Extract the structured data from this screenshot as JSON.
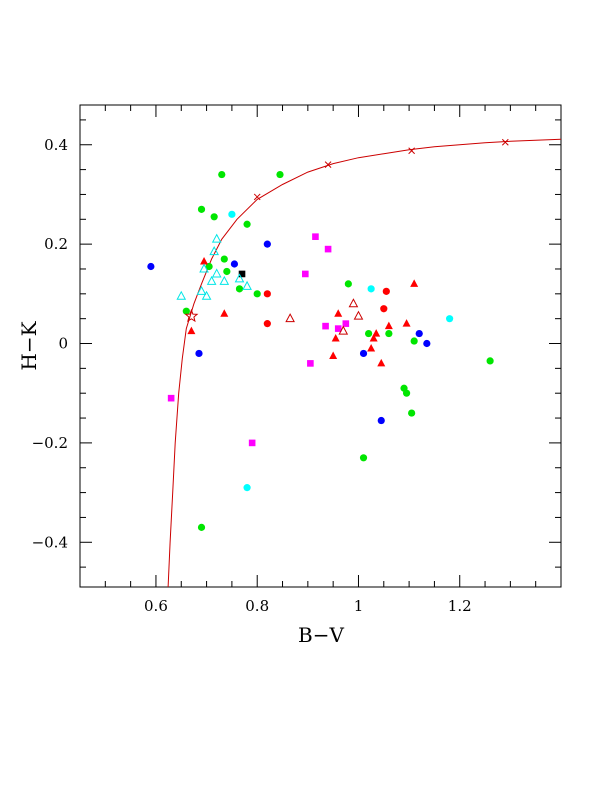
{
  "chart_data": {
    "type": "scatter",
    "xlabel": "B−V",
    "ylabel": "H−K",
    "xlim": [
      0.45,
      1.4
    ],
    "ylim": [
      -0.49,
      0.48
    ],
    "x_ticks": [
      {
        "value": 0.6,
        "label": "0.6"
      },
      {
        "value": 0.8,
        "label": "0.8"
      },
      {
        "value": 1.0,
        "label": "1"
      },
      {
        "value": 1.2,
        "label": "1.2"
      }
    ],
    "y_ticks": [
      {
        "value": 0.4,
        "label": "0.4"
      },
      {
        "value": 0.2,
        "label": "0.2"
      },
      {
        "value": 0.0,
        "label": "0"
      },
      {
        "value": -0.2,
        "label": "−0.2"
      },
      {
        "value": -0.4,
        "label": "−0.4"
      }
    ],
    "x_minor_step": 0.05,
    "y_minor_step": 0.05,
    "curve": {
      "color": "#cc0000",
      "points": [
        [
          0.624,
          -0.49
        ],
        [
          0.628,
          -0.4
        ],
        [
          0.633,
          -0.3
        ],
        [
          0.638,
          -0.2
        ],
        [
          0.645,
          -0.1
        ],
        [
          0.652,
          -0.03
        ],
        [
          0.66,
          0.03
        ],
        [
          0.675,
          0.08
        ],
        [
          0.69,
          0.12
        ],
        [
          0.71,
          0.17
        ],
        [
          0.73,
          0.21
        ],
        [
          0.76,
          0.25
        ],
        [
          0.8,
          0.29
        ],
        [
          0.85,
          0.32
        ],
        [
          0.9,
          0.345
        ],
        [
          0.95,
          0.362
        ],
        [
          1.0,
          0.374
        ],
        [
          1.05,
          0.382
        ],
        [
          1.1,
          0.39
        ],
        [
          1.15,
          0.396
        ],
        [
          1.2,
          0.4
        ],
        [
          1.25,
          0.404
        ],
        [
          1.3,
          0.407
        ],
        [
          1.35,
          0.409
        ],
        [
          1.4,
          0.411
        ]
      ],
      "markers": [
        [
          0.8,
          0.295
        ],
        [
          0.94,
          0.36
        ],
        [
          1.105,
          0.388
        ],
        [
          1.29,
          0.405
        ]
      ]
    },
    "series": [
      {
        "marker": "circle",
        "color": "#00e600",
        "points": [
          [
            0.73,
            0.34
          ],
          [
            0.845,
            0.34
          ],
          [
            0.69,
            0.27
          ],
          [
            0.715,
            0.255
          ],
          [
            0.78,
            0.24
          ],
          [
            0.705,
            0.155
          ],
          [
            0.735,
            0.17
          ],
          [
            0.74,
            0.145
          ],
          [
            0.765,
            0.11
          ],
          [
            0.8,
            0.1
          ],
          [
            0.66,
            0.065
          ],
          [
            0.98,
            0.12
          ],
          [
            1.02,
            0.02
          ],
          [
            1.06,
            0.02
          ],
          [
            1.11,
            0.005
          ],
          [
            1.09,
            -0.09
          ],
          [
            1.095,
            -0.1
          ],
          [
            1.105,
            -0.14
          ],
          [
            1.26,
            -0.035
          ],
          [
            1.01,
            -0.23
          ],
          [
            0.69,
            -0.37
          ]
        ]
      },
      {
        "marker": "circle",
        "color": "#0000ff",
        "points": [
          [
            0.59,
            0.155
          ],
          [
            0.755,
            0.16
          ],
          [
            0.82,
            0.2
          ],
          [
            0.685,
            -0.02
          ],
          [
            1.01,
            -0.02
          ],
          [
            1.12,
            0.02
          ],
          [
            1.135,
            0.0
          ],
          [
            1.045,
            -0.155
          ]
        ]
      },
      {
        "marker": "circle",
        "color": "#ff0000",
        "points": [
          [
            0.82,
            0.1
          ],
          [
            0.82,
            0.04
          ],
          [
            1.055,
            0.105
          ],
          [
            1.05,
            0.07
          ]
        ]
      },
      {
        "marker": "circle",
        "color": "#00ffff",
        "points": [
          [
            0.75,
            0.26
          ],
          [
            1.025,
            0.11
          ],
          [
            1.18,
            0.05
          ],
          [
            0.78,
            -0.29
          ]
        ]
      },
      {
        "marker": "square",
        "color": "#ff00ff",
        "points": [
          [
            0.915,
            0.215
          ],
          [
            0.94,
            0.19
          ],
          [
            0.895,
            0.14
          ],
          [
            0.935,
            0.035
          ],
          [
            0.96,
            0.03
          ],
          [
            0.975,
            0.04
          ],
          [
            0.905,
            -0.04
          ],
          [
            0.63,
            -0.11
          ],
          [
            0.79,
            -0.2
          ]
        ]
      },
      {
        "marker": "square",
        "color": "#000000",
        "points": [
          [
            0.77,
            0.14
          ]
        ]
      },
      {
        "marker": "triangle",
        "color": "#ff0000",
        "points": [
          [
            0.695,
            0.165
          ],
          [
            0.735,
            0.06
          ],
          [
            0.67,
            0.025
          ],
          [
            0.96,
            0.06
          ],
          [
            0.955,
            0.01
          ],
          [
            0.95,
            -0.025
          ],
          [
            1.03,
            0.01
          ],
          [
            1.035,
            0.02
          ],
          [
            1.025,
            -0.01
          ],
          [
            1.06,
            0.035
          ],
          [
            1.095,
            0.04
          ],
          [
            1.045,
            -0.04
          ],
          [
            1.11,
            0.12
          ]
        ]
      },
      {
        "marker": "triangle-open",
        "color": "#cc0000",
        "points": [
          [
            0.865,
            0.05
          ],
          [
            0.99,
            0.08
          ],
          [
            1.0,
            0.055
          ],
          [
            0.97,
            0.025
          ]
        ]
      },
      {
        "marker": "triangle-open",
        "color": "#00e6e6",
        "points": [
          [
            0.72,
            0.21
          ],
          [
            0.715,
            0.185
          ],
          [
            0.695,
            0.15
          ],
          [
            0.72,
            0.14
          ],
          [
            0.71,
            0.125
          ],
          [
            0.735,
            0.125
          ],
          [
            0.765,
            0.13
          ],
          [
            0.78,
            0.115
          ],
          [
            0.65,
            0.095
          ],
          [
            0.69,
            0.105
          ],
          [
            0.7,
            0.095
          ]
        ]
      },
      {
        "marker": "star-open",
        "color": "#cc0000",
        "points": [
          [
            0.67,
            0.055
          ]
        ]
      }
    ]
  }
}
